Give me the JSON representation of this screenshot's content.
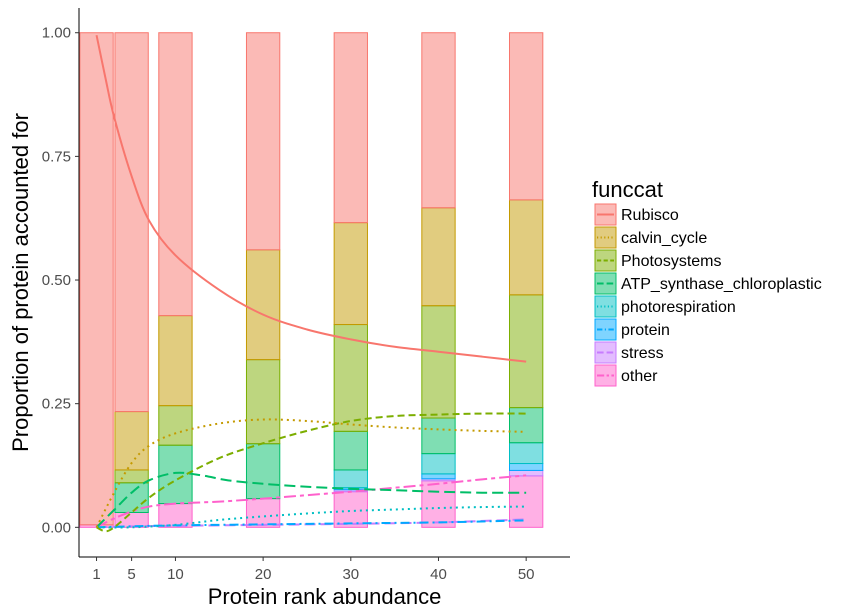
{
  "chart_data": {
    "type": "bar",
    "xlabel": "Protein rank abundance",
    "ylabel": "Proportion of protein accounted for",
    "x_ticks": [
      1,
      5,
      10,
      20,
      30,
      40,
      50
    ],
    "y_ticks": [
      "0.00",
      "0.25",
      "0.50",
      "0.75",
      "1.00"
    ],
    "xlim": [
      -1,
      55
    ],
    "ylim": [
      -0.06,
      1.05
    ],
    "grid": false,
    "legend": {
      "title": "funccat",
      "position": "right",
      "entries": [
        {
          "name": "Rubisco",
          "color": "#F8766D",
          "dash": "solid"
        },
        {
          "name": "calvin_cycle",
          "color": "#C49A00",
          "dash": "dotted"
        },
        {
          "name": "Photosystems",
          "color": "#7CAE00",
          "dash": "dashed"
        },
        {
          "name": "ATP_synthase_chloroplastic",
          "color": "#00BE67",
          "dash": "longdash"
        },
        {
          "name": "photorespiration",
          "color": "#00BFC4",
          "dash": "dotted"
        },
        {
          "name": "protein",
          "color": "#00A9FF",
          "dash": "dashdot"
        },
        {
          "name": "stress",
          "color": "#C77CFF",
          "dash": "longdash"
        },
        {
          "name": "other",
          "color": "#FF61CC",
          "dash": "twodash"
        }
      ]
    },
    "bars": [
      {
        "x": 1,
        "stack": [
          0.0,
          0.0,
          0.0,
          0.0,
          0.0,
          0.0,
          0.0,
          0.005
        ],
        "top": 1.0
      },
      {
        "x": 5,
        "stack": [
          0.0,
          0.118,
          0.026,
          0.06,
          0.0,
          0.0,
          0.0,
          0.03
        ],
        "top": 1.0
      },
      {
        "x": 10,
        "stack": [
          0.0,
          0.182,
          0.08,
          0.118,
          0.0,
          0.0,
          0.0,
          0.048
        ],
        "top": 1.0
      },
      {
        "x": 20,
        "stack": [
          0.0,
          0.222,
          0.17,
          0.111,
          0.0,
          0.0,
          0.0,
          0.058
        ],
        "top": 1.0
      },
      {
        "x": 30,
        "stack": [
          0.0,
          0.206,
          0.216,
          0.078,
          0.036,
          0.004,
          0.004,
          0.072
        ],
        "top": 1.0
      },
      {
        "x": 40,
        "stack": [
          0.0,
          0.198,
          0.227,
          0.072,
          0.041,
          0.01,
          0.004,
          0.094
        ],
        "top": 1.0
      },
      {
        "x": 50,
        "stack": [
          0.0,
          0.192,
          0.228,
          0.071,
          0.042,
          0.014,
          0.011,
          0.104
        ],
        "top": 1.0
      }
    ],
    "series": [
      {
        "name": "Rubisco",
        "x": [
          1,
          2,
          3,
          5,
          7,
          10,
          15,
          20,
          25,
          30,
          35,
          40,
          45,
          50
        ],
        "y": [
          0.995,
          0.91,
          0.83,
          0.71,
          0.62,
          0.55,
          0.48,
          0.43,
          0.4,
          0.38,
          0.365,
          0.355,
          0.345,
          0.335
        ]
      },
      {
        "name": "calvin_cycle",
        "x": [
          1,
          3,
          5,
          7,
          10,
          15,
          20,
          25,
          30,
          35,
          40,
          45,
          50
        ],
        "y": [
          0.0,
          0.07,
          0.13,
          0.165,
          0.19,
          0.21,
          0.218,
          0.215,
          0.208,
          0.202,
          0.198,
          0.195,
          0.193
        ]
      },
      {
        "name": "Photosystems",
        "x": [
          1,
          2,
          3,
          5,
          7,
          10,
          15,
          20,
          25,
          30,
          35,
          40,
          45,
          50
        ],
        "y": [
          0.0,
          -0.008,
          0.0,
          0.03,
          0.06,
          0.095,
          0.14,
          0.17,
          0.195,
          0.215,
          0.225,
          0.228,
          0.23,
          0.23
        ]
      },
      {
        "name": "ATP_synthase_chloroplastic",
        "x": [
          1,
          3,
          5,
          7,
          10,
          13,
          16,
          20,
          25,
          30,
          35,
          40,
          45,
          50
        ],
        "y": [
          0.0,
          0.035,
          0.07,
          0.095,
          0.11,
          0.105,
          0.095,
          0.088,
          0.082,
          0.078,
          0.075,
          0.072,
          0.07,
          0.07
        ]
      },
      {
        "name": "photorespiration",
        "x": [
          1,
          5,
          10,
          15,
          20,
          25,
          30,
          35,
          40,
          45,
          50
        ],
        "y": [
          0.0,
          0.0,
          0.005,
          0.015,
          0.022,
          0.028,
          0.033,
          0.036,
          0.039,
          0.041,
          0.042
        ]
      },
      {
        "name": "protein",
        "x": [
          1,
          5,
          10,
          20,
          30,
          40,
          50
        ],
        "y": [
          0.0,
          0.002,
          0.004,
          0.006,
          0.008,
          0.01,
          0.014
        ]
      },
      {
        "name": "stress",
        "x": [
          1,
          5,
          10,
          20,
          30,
          40,
          50
        ],
        "y": [
          0.0,
          0.002,
          0.003,
          0.005,
          0.007,
          0.01,
          0.016
        ]
      },
      {
        "name": "other",
        "x": [
          1,
          3,
          5,
          7,
          10,
          15,
          20,
          25,
          30,
          35,
          40,
          45,
          50
        ],
        "y": [
          0.0,
          0.018,
          0.032,
          0.042,
          0.048,
          0.052,
          0.058,
          0.065,
          0.072,
          0.08,
          0.088,
          0.097,
          0.105
        ]
      }
    ]
  }
}
